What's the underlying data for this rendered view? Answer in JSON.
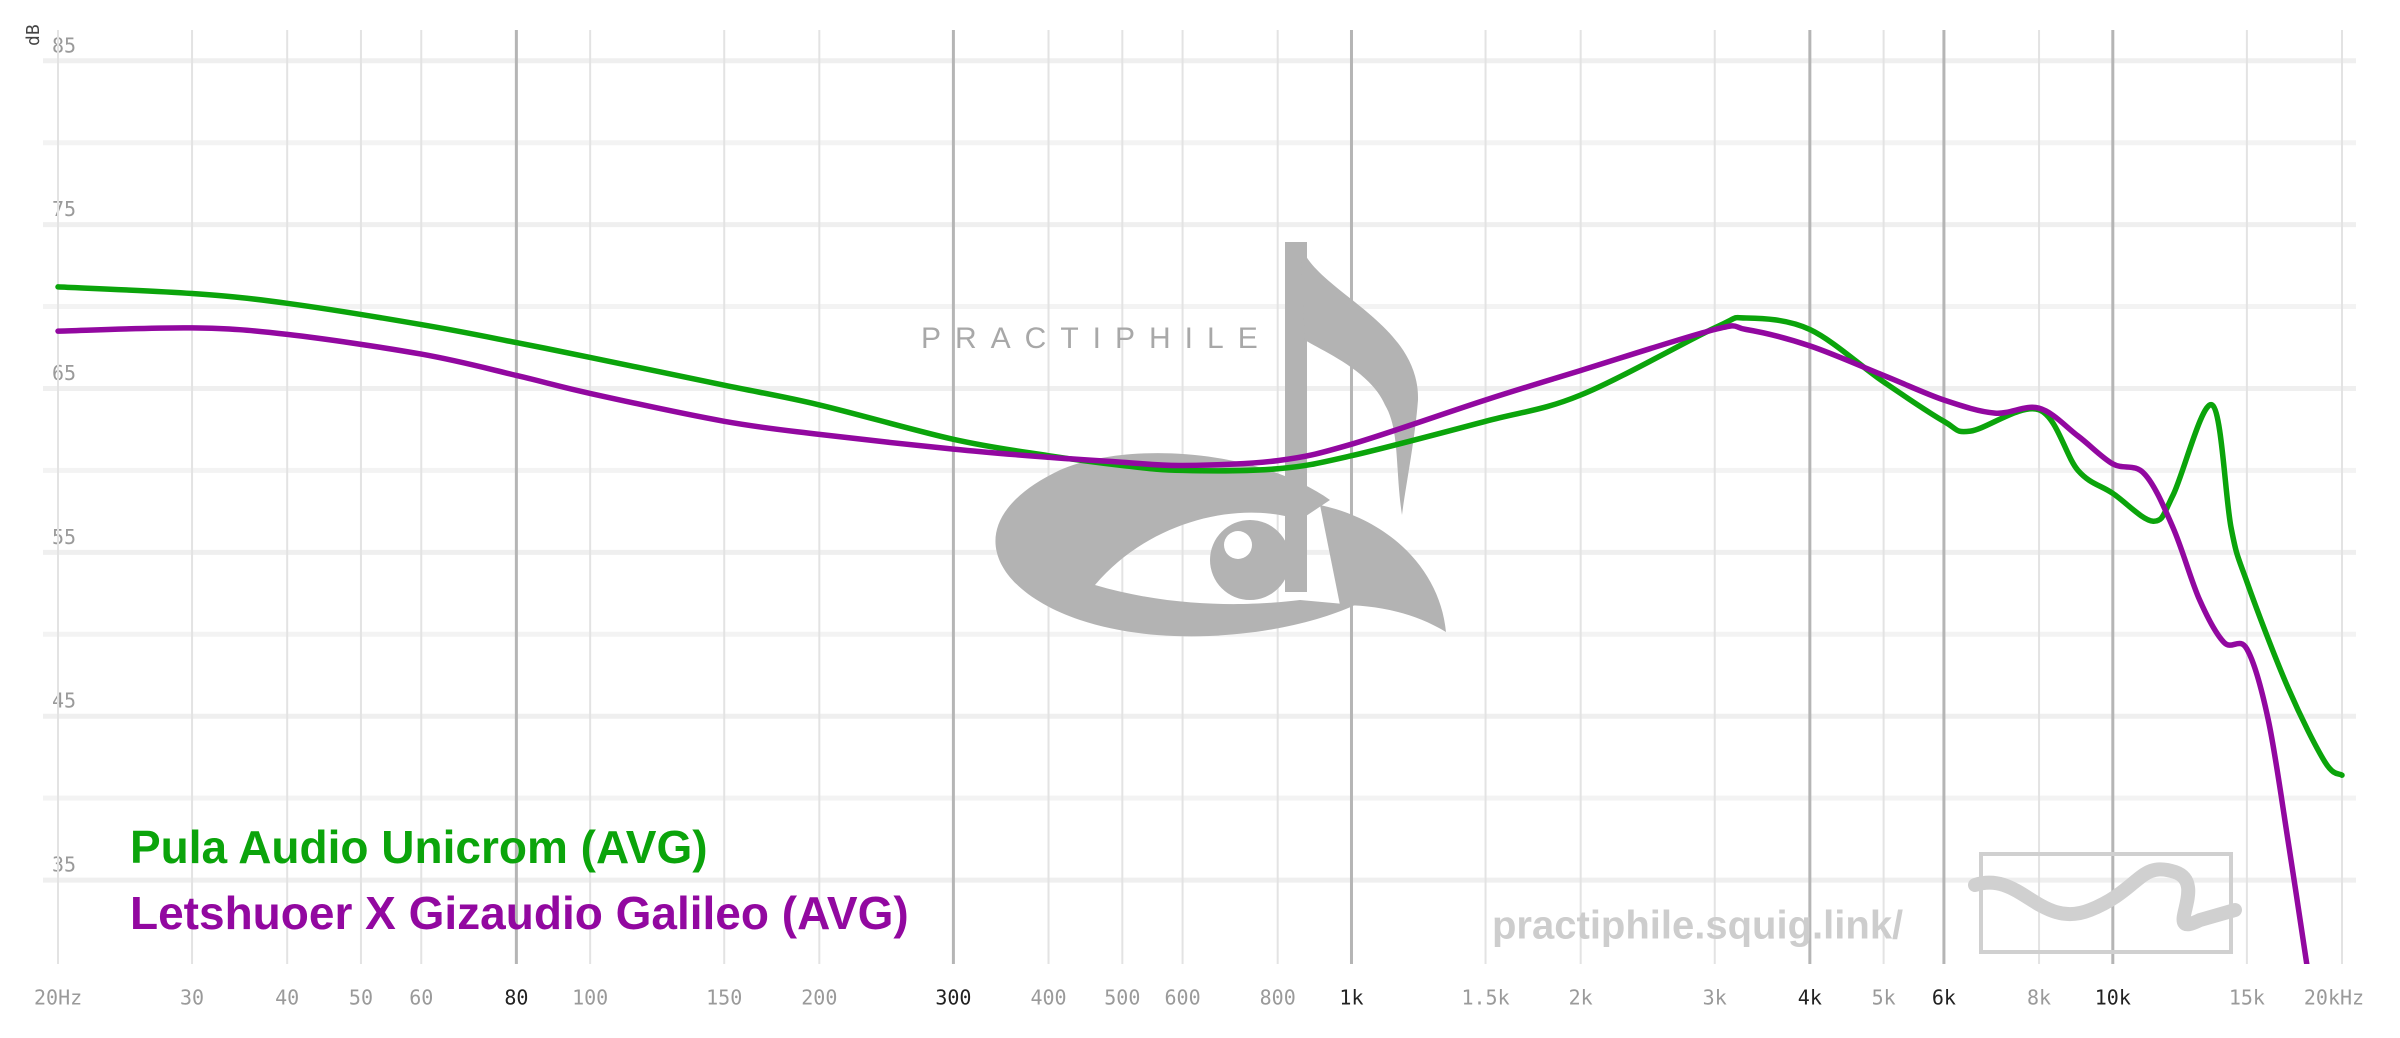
{
  "chart_data": {
    "type": "line",
    "y_label": "dB",
    "x_scale": "log",
    "xlim": [
      20,
      20000
    ],
    "ylim": [
      30,
      87
    ],
    "yticks": [
      35,
      45,
      55,
      65,
      75,
      85
    ],
    "yminor": [
      40,
      50,
      60,
      70,
      80
    ],
    "xticks": [
      {
        "value": 20,
        "label": "20Hz"
      },
      30,
      40,
      50,
      60,
      80,
      100,
      150,
      200,
      300,
      400,
      500,
      600,
      800,
      {
        "value": 1000,
        "label": "1k"
      },
      {
        "value": 1500,
        "label": "1.5k"
      },
      {
        "value": 2000,
        "label": "2k"
      },
      {
        "value": 3000,
        "label": "3k"
      },
      {
        "value": 4000,
        "label": "4k"
      },
      {
        "value": 5000,
        "label": "5k"
      },
      {
        "value": 6000,
        "label": "6k"
      },
      {
        "value": 8000,
        "label": "8k"
      },
      {
        "value": 10000,
        "label": "10k"
      },
      {
        "value": 15000,
        "label": "15k"
      },
      {
        "value": 20000,
        "label": "20kHz"
      }
    ],
    "xticks_major": [
      80,
      300,
      1000,
      4000,
      6000,
      10000
    ],
    "grid": true,
    "legend": "bottom-left",
    "watermarks": [
      "PRACTIPHILE",
      "practiphile.squig.link/"
    ],
    "series": [
      {
        "name": "Pula Audio Unicrom (AVG)",
        "color": "#0ba40b",
        "x": [
          20,
          30,
          40,
          60,
          80,
          100,
          150,
          200,
          300,
          400,
          500,
          600,
          800,
          1000,
          1500,
          2000,
          3000,
          3300,
          4000,
          5000,
          6000,
          6500,
          8000,
          9000,
          10000,
          11300,
          12000,
          13500,
          14300,
          15000,
          17000,
          19000,
          20000
        ],
        "values": [
          71.2,
          70.8,
          70.2,
          68.9,
          67.8,
          66.9,
          65.2,
          64.0,
          61.9,
          60.9,
          60.3,
          60.0,
          60.1,
          60.9,
          63.0,
          64.6,
          68.7,
          69.3,
          68.6,
          65.4,
          63.0,
          62.4,
          63.7,
          60.0,
          58.6,
          56.9,
          58.5,
          64.0,
          56.5,
          53.2,
          46.7,
          42.2,
          41.4
        ]
      },
      {
        "name": "Letshuoer X Gizaudio Galileo (AVG)",
        "color": "#9208a0",
        "x": [
          20,
          30,
          40,
          60,
          80,
          100,
          150,
          200,
          300,
          400,
          500,
          600,
          800,
          1000,
          1500,
          2000,
          3000,
          3300,
          4000,
          5000,
          6000,
          7000,
          8000,
          9000,
          10000,
          11000,
          12000,
          13000,
          14000,
          15000,
          16000,
          17000,
          18000
        ],
        "values": [
          68.5,
          68.7,
          68.3,
          67.1,
          65.8,
          64.7,
          63.0,
          62.2,
          61.3,
          60.8,
          60.5,
          60.3,
          60.6,
          61.6,
          64.3,
          66.1,
          68.6,
          68.6,
          67.6,
          65.8,
          64.3,
          63.5,
          63.8,
          62.1,
          60.4,
          59.8,
          56.5,
          52.1,
          49.5,
          49.1,
          44.8,
          37.3,
          29.7
        ]
      }
    ]
  }
}
